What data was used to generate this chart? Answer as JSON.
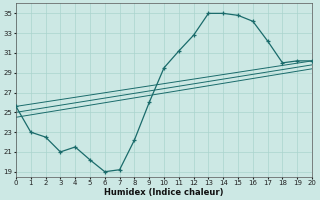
{
  "xlabel": "Humidex (Indice chaleur)",
  "bg_color": "#cce8e4",
  "line_color": "#1a6b6b",
  "grid_color": "#aad4ce",
  "line1_x": [
    0,
    1,
    2,
    3,
    4,
    5,
    6,
    7,
    8,
    9,
    10,
    11,
    12,
    13,
    14,
    15,
    16,
    17,
    18,
    19,
    20
  ],
  "line1_y": [
    25.6,
    23.0,
    22.5,
    21.0,
    21.5,
    20.2,
    19.0,
    19.2,
    22.2,
    26.0,
    29.5,
    31.2,
    32.8,
    35.0,
    35.0,
    34.8,
    34.2,
    32.2,
    30.0,
    30.2,
    30.2
  ],
  "line2_x": [
    0,
    20
  ],
  "line2_y": [
    25.6,
    30.2
  ],
  "line3_x": [
    0,
    20
  ],
  "line3_y": [
    25.0,
    29.8
  ],
  "line4_x": [
    0,
    20
  ],
  "line4_y": [
    24.5,
    29.4
  ],
  "xlim": [
    0,
    20
  ],
  "ylim": [
    18.5,
    36
  ],
  "yticks": [
    19,
    21,
    23,
    25,
    27,
    29,
    31,
    33,
    35
  ],
  "xticks": [
    0,
    1,
    2,
    3,
    4,
    5,
    6,
    7,
    8,
    9,
    10,
    11,
    12,
    13,
    14,
    15,
    16,
    17,
    18,
    19,
    20
  ]
}
